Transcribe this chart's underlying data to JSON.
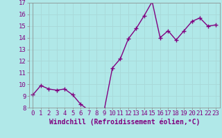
{
  "x": [
    0,
    1,
    2,
    3,
    4,
    5,
    6,
    7,
    8,
    9,
    10,
    11,
    12,
    13,
    14,
    15,
    16,
    17,
    18,
    19,
    20,
    21,
    22,
    23
  ],
  "y": [
    9.1,
    9.9,
    9.6,
    9.5,
    9.6,
    9.1,
    8.3,
    7.8,
    7.8,
    7.9,
    11.4,
    12.2,
    13.9,
    14.8,
    15.9,
    17.1,
    14.0,
    14.6,
    13.8,
    14.6,
    15.4,
    15.7,
    15.0,
    15.1
  ],
  "line_color": "#800080",
  "marker": "+",
  "bg_color": "#b0e8e8",
  "grid_color": "#c8e8e8",
  "xlabel": "Windchill (Refroidissement éolien,°C)",
  "ylim": [
    8,
    17
  ],
  "xlim_min": -0.5,
  "xlim_max": 23.5,
  "yticks": [
    8,
    9,
    10,
    11,
    12,
    13,
    14,
    15,
    16,
    17
  ],
  "xticks": [
    0,
    1,
    2,
    3,
    4,
    5,
    6,
    7,
    8,
    9,
    10,
    11,
    12,
    13,
    14,
    15,
    16,
    17,
    18,
    19,
    20,
    21,
    22,
    23
  ],
  "xlabel_fontsize": 7,
  "tick_fontsize": 6.5,
  "line_width": 1.0,
  "marker_size": 5
}
